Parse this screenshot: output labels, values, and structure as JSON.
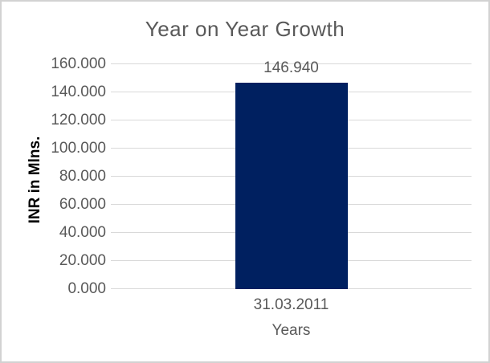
{
  "chart": {
    "title": "Year on Year Growth",
    "colors": {
      "bar": "#002060",
      "gridline": "#d9d9d9",
      "text_gray": "#595959",
      "y_axis_title_text": "#000000",
      "border": "#d2d2d2",
      "background": "#ffffff"
    }
  },
  "chart_data": {
    "type": "bar",
    "title": "Year on Year Growth",
    "categories": [
      "31.03.2011"
    ],
    "values": [
      146.94
    ],
    "data_labels": [
      "146.940"
    ],
    "xlabel": "Years",
    "ylabel": "INR in Mlns.",
    "ylim": [
      0,
      160
    ],
    "ytick_step": 20,
    "ytick_labels": [
      "0.000",
      "20.000",
      "40.000",
      "60.000",
      "80.000",
      "100.000",
      "120.000",
      "140.000",
      "160.000"
    ],
    "grid": true,
    "legend": false,
    "bar_color": "#002060"
  }
}
